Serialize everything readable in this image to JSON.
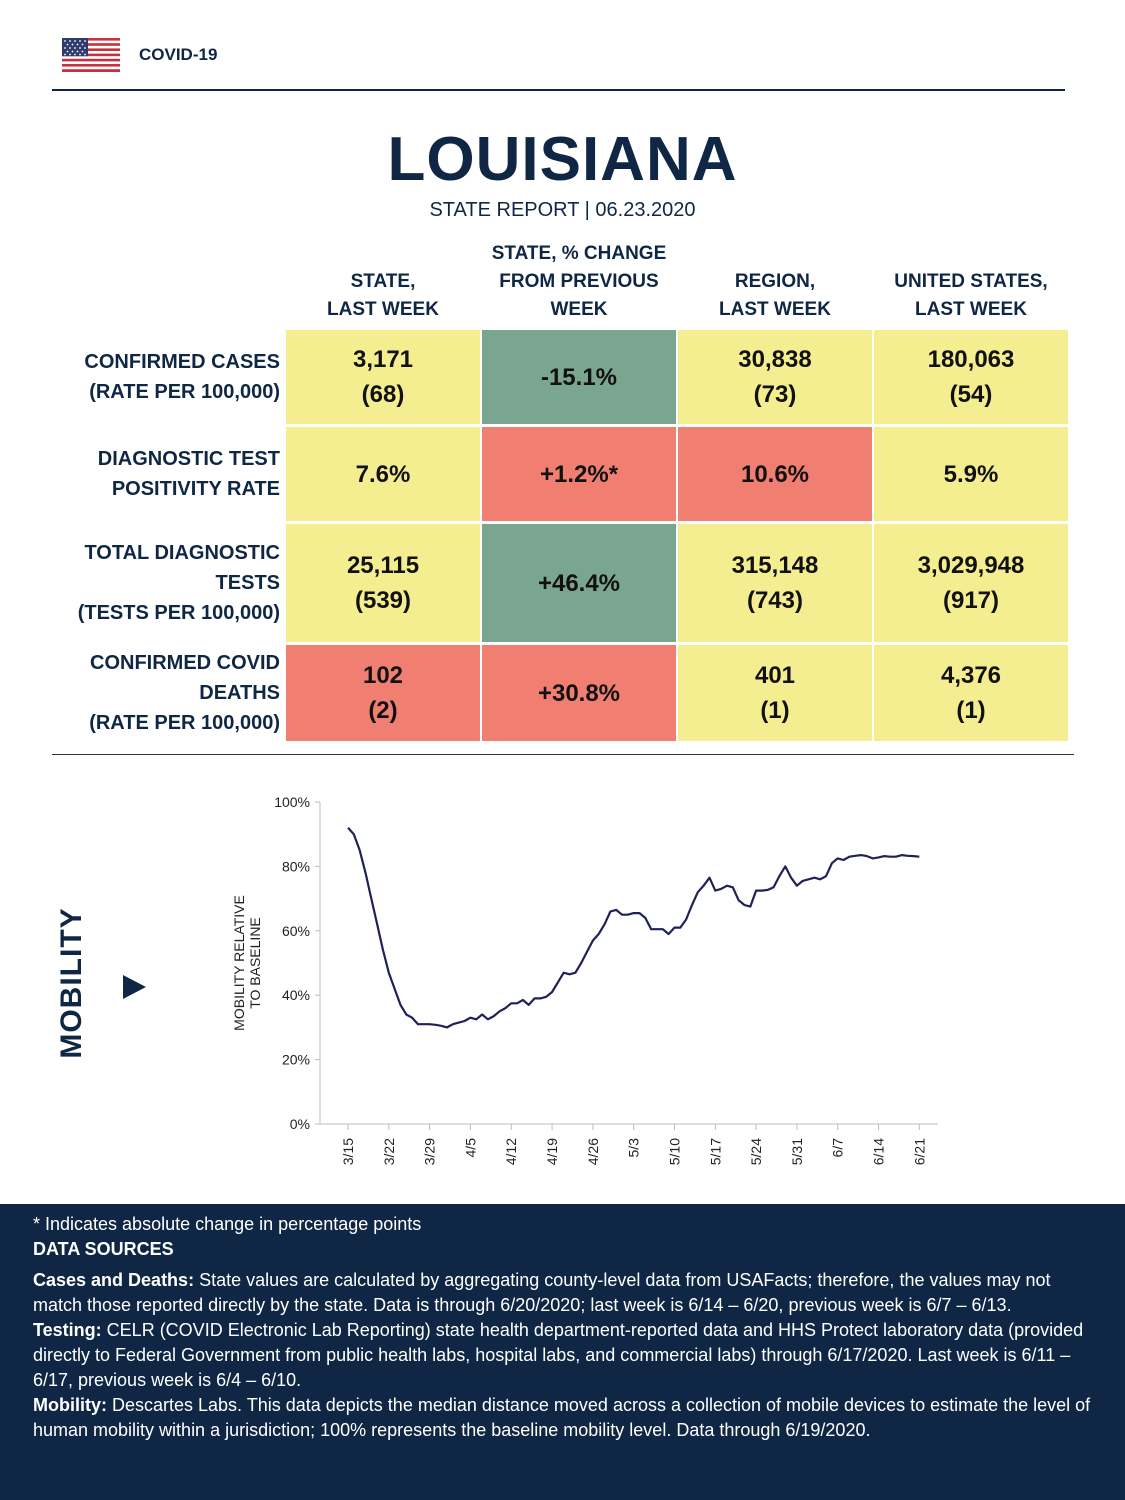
{
  "header": {
    "brand": "COVID-19"
  },
  "title": "LOUISIANA",
  "subtitle": "STATE REPORT | 06.23.2020",
  "table": {
    "columns": [
      "STATE,\nLAST WEEK",
      "STATE, % CHANGE\nFROM PREVIOUS\nWEEK",
      "REGION,\nLAST WEEK",
      "UNITED STATES,\nLAST WEEK"
    ],
    "rows": [
      {
        "label": "CONFIRMED CASES\n(RATE PER 100,000)",
        "cells": [
          "3,171\n(68)",
          "-15.1%",
          "30,838\n(73)",
          "180,063\n(54)"
        ]
      },
      {
        "label": "DIAGNOSTIC TEST\nPOSITIVITY RATE",
        "cells": [
          "7.6%",
          "+1.2%*",
          "10.6%",
          "5.9%"
        ]
      },
      {
        "label": "TOTAL DIAGNOSTIC\nTESTS\n(TESTS PER 100,000)",
        "cells": [
          "25,115\n(539)",
          "+46.4%",
          "315,148\n(743)",
          "3,029,948\n(917)"
        ]
      },
      {
        "label": "CONFIRMED COVID\nDEATHS\n(RATE PER 100,000)",
        "cells": [
          "102\n(2)",
          "+30.8%",
          "401\n(1)",
          "4,376\n(1)"
        ]
      }
    ],
    "cell_colors": [
      [
        "#f4ee90",
        "#7aa58e",
        "#f4ee90",
        "#f4ee90"
      ],
      [
        "#f4ee90",
        "#f07f72",
        "#f07f72",
        "#f4ee90"
      ],
      [
        "#f4ee90",
        "#7aa58e",
        "#f4ee90",
        "#f4ee90"
      ],
      [
        "#f07f72",
        "#f07f72",
        "#f4ee90",
        "#f4ee90"
      ]
    ]
  },
  "mobility": {
    "label": "MOBILITY"
  },
  "chart_data": {
    "type": "line",
    "ylabel": "MOBILITY RELATIVE\nTO BASELINE",
    "ylim": [
      0,
      100
    ],
    "yticks": [
      "0%",
      "20%",
      "40%",
      "60%",
      "80%",
      "100%"
    ],
    "xticks": [
      "3/15",
      "3/22",
      "3/29",
      "4/5",
      "4/12",
      "4/19",
      "4/26",
      "5/3",
      "5/10",
      "5/17",
      "5/24",
      "5/31",
      "6/7",
      "6/14",
      "6/21"
    ],
    "series": [
      {
        "name": "Mobility",
        "color": "#1f2159",
        "x": [
          0,
          1,
          2,
          3,
          4,
          5,
          6,
          7,
          8,
          9,
          10,
          11,
          12,
          13,
          14,
          15,
          16,
          17,
          18,
          19,
          20,
          21,
          22,
          23,
          24,
          25,
          26,
          27,
          28,
          29,
          30,
          31,
          32,
          33,
          34,
          35,
          36,
          37,
          38,
          39,
          40,
          41,
          42,
          43,
          44,
          45,
          46,
          47,
          48,
          49,
          50,
          51,
          52,
          53,
          54,
          55,
          56,
          57,
          58,
          59,
          60,
          61,
          62,
          63,
          64,
          65,
          66,
          67,
          68,
          69,
          70,
          71,
          72,
          73,
          74,
          75,
          76,
          77,
          78,
          79,
          80,
          81,
          82,
          83,
          84,
          85,
          86,
          87,
          88,
          89,
          90,
          91,
          92,
          93,
          94,
          95,
          96,
          97,
          98
        ],
        "values": [
          92,
          90,
          85,
          78,
          70,
          62,
          54,
          47,
          42,
          37,
          34,
          33,
          31,
          31,
          31,
          30.8,
          30.5,
          30,
          31,
          31.5,
          32,
          33,
          32.5,
          34,
          32.5,
          33.5,
          35,
          36,
          37.5,
          37.5,
          38.5,
          37,
          39,
          39,
          39.5,
          41,
          44,
          47,
          46.5,
          47,
          50,
          53.5,
          57,
          59,
          62,
          66,
          66.5,
          65,
          65,
          65.5,
          65.5,
          64,
          60.5,
          60.5,
          60.5,
          59,
          61,
          61,
          63.5,
          68,
          72,
          74,
          76.5,
          72.5,
          73,
          74,
          73.5,
          69.5,
          68,
          67.5,
          72.5,
          72.5,
          72.7,
          73.5,
          77,
          80,
          76.5,
          74,
          75.5,
          76,
          76.5,
          76,
          77,
          81,
          82.5,
          82,
          83,
          83.3,
          83.5,
          83.2,
          82.5,
          82.8,
          83.2,
          83,
          83,
          83.5,
          83.3,
          83.2,
          83
        ]
      }
    ]
  },
  "footer": {
    "note": "* Indicates absolute change in percentage points",
    "heading": "DATA SOURCES",
    "sources": [
      {
        "label": "Cases and Deaths:",
        "text": " State values are calculated by aggregating county-level data from USAFacts; therefore, the values may not match those reported directly by the state. Data is through 6/20/2020; last week is 6/14 – 6/20, previous week is 6/7 – 6/13."
      },
      {
        "label": "Testing:",
        "text": " CELR (COVID Electronic Lab Reporting) state health department-reported data and HHS Protect laboratory data (provided directly to Federal Government from public health labs, hospital labs, and commercial labs) through 6/17/2020. Last week is 6/11 – 6/17, previous week is 6/4 – 6/10."
      },
      {
        "label": "Mobility:",
        "text": " Descartes Labs. This data depicts the median distance moved across a collection of mobile devices to estimate the level of human mobility within a jurisdiction; 100% represents the baseline mobility level. Data through 6/19/2020."
      }
    ]
  }
}
